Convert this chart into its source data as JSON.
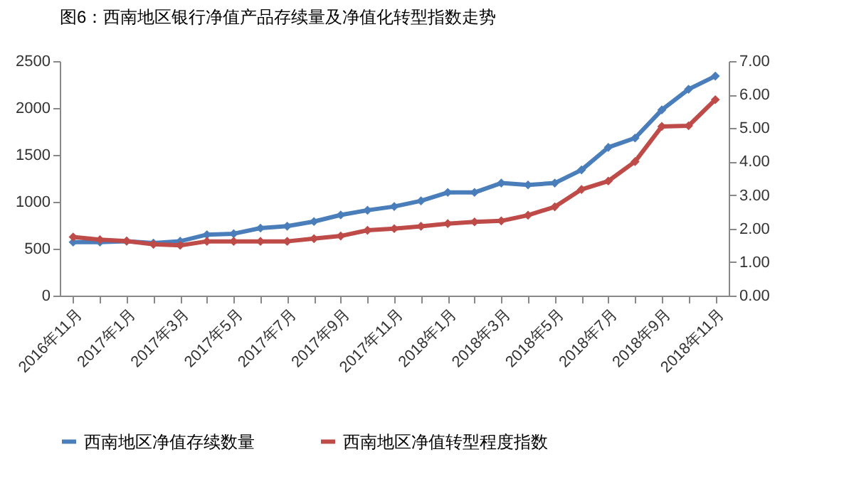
{
  "chart_data": {
    "type": "line",
    "title": "图6：西南地区银行净值产品存续量及净值化转型指数走势",
    "categories": [
      "2016年11月",
      null,
      "2017年1月",
      null,
      "2017年3月",
      null,
      "2017年5月",
      null,
      "2017年7月",
      null,
      "2017年9月",
      null,
      "2017年11月",
      null,
      "2018年1月",
      null,
      "2018年3月",
      null,
      "2018年5月",
      null,
      "2018年7月",
      null,
      "2018年9月",
      null,
      "2018年11月"
    ],
    "series": [
      {
        "name": "西南地区净值存续数量",
        "color": "#4a7ebb",
        "values": [
          570,
          570,
          580,
          560,
          580,
          650,
          660,
          720,
          740,
          790,
          860,
          910,
          950,
          1010,
          1100,
          1100,
          1200,
          1180,
          1200,
          1340,
          1580,
          1680,
          1980,
          2200,
          2340
        ]
      },
      {
        "name": "西南地区净值转型程度指数",
        "color": "#be4b48",
        "axis": "y2",
        "values": [
          1.75,
          1.67,
          1.63,
          1.53,
          1.5,
          1.62,
          1.62,
          1.62,
          1.62,
          1.7,
          1.78,
          1.95,
          2.0,
          2.07,
          2.15,
          2.2,
          2.23,
          2.4,
          2.65,
          3.17,
          3.42,
          4.0,
          5.05,
          5.07,
          5.85
        ]
      }
    ],
    "ylim": [
      0,
      2500
    ],
    "yticks": [
      0,
      500,
      1000,
      1500,
      2000,
      2500
    ],
    "y2lim": [
      0,
      7
    ],
    "y2ticks": [
      {
        "value": 0,
        "label": "0.00"
      },
      {
        "value": 1,
        "label": "1.00"
      },
      {
        "value": 2,
        "label": "2.00"
      },
      {
        "value": 3,
        "label": "3.00"
      },
      {
        "value": 4,
        "label": "4.00"
      },
      {
        "value": 5,
        "label": "5.00"
      },
      {
        "value": 6,
        "label": "6.00"
      },
      {
        "value": 7,
        "label": "7.00"
      }
    ],
    "legend": "bottom",
    "marker": "diamond",
    "grid": false
  }
}
